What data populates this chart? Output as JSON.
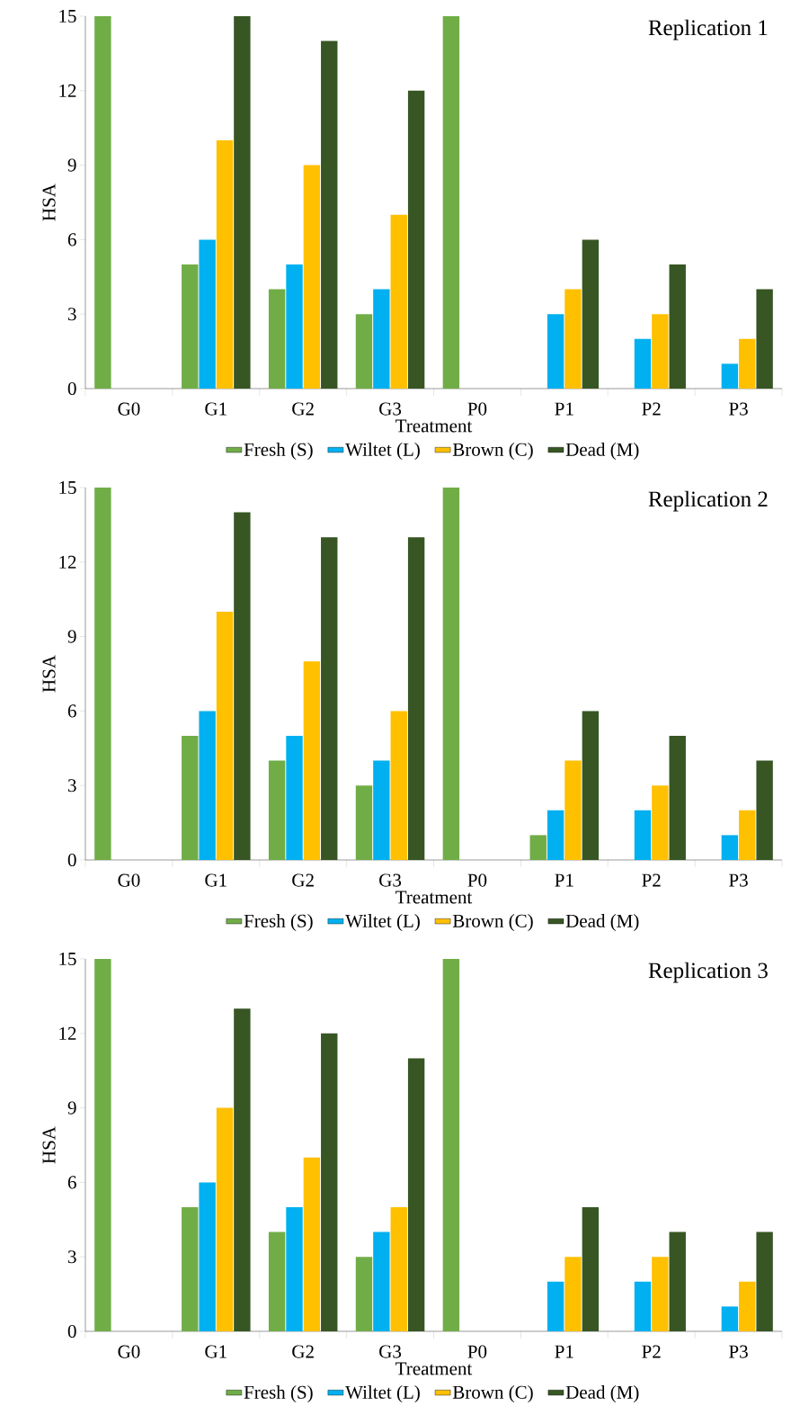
{
  "chart_data": [
    {
      "type": "bar",
      "title": "Replication 1",
      "xlabel": "Treatment",
      "ylabel": "HSA",
      "categories": [
        "G0",
        "G1",
        "G2",
        "G3",
        "P0",
        "P1",
        "P2",
        "P3"
      ],
      "ylim": [
        0,
        15
      ],
      "yticks": [
        0,
        3,
        6,
        9,
        12,
        15
      ],
      "grid": false,
      "legend": "bottom",
      "series": [
        {
          "name": "Fresh (S)",
          "color": "#70ad47",
          "values": [
            15,
            5,
            4,
            3,
            15,
            0,
            0,
            0
          ]
        },
        {
          "name": "Wiltet (L)",
          "color": "#00b0f0",
          "values": [
            0,
            6,
            5,
            4,
            0,
            3,
            2,
            1
          ]
        },
        {
          "name": "Brown (C)",
          "color": "#ffc000",
          "values": [
            0,
            10,
            9,
            7,
            0,
            4,
            3,
            2
          ]
        },
        {
          "name": "Dead (M)",
          "color": "#375623",
          "values": [
            0,
            15,
            14,
            12,
            0,
            6,
            5,
            4
          ]
        }
      ]
    },
    {
      "type": "bar",
      "title": "Replication 2",
      "xlabel": "Treatment",
      "ylabel": "HSA",
      "categories": [
        "G0",
        "G1",
        "G2",
        "G3",
        "P0",
        "P1",
        "P2",
        "P3"
      ],
      "ylim": [
        0,
        15
      ],
      "yticks": [
        0,
        3,
        6,
        9,
        12,
        15
      ],
      "grid": false,
      "legend": "bottom",
      "series": [
        {
          "name": "Fresh (S)",
          "color": "#70ad47",
          "values": [
            15,
            5,
            4,
            3,
            15,
            1,
            0,
            0
          ]
        },
        {
          "name": "Wiltet (L)",
          "color": "#00b0f0",
          "values": [
            0,
            6,
            5,
            4,
            0,
            2,
            2,
            1
          ]
        },
        {
          "name": "Brown (C)",
          "color": "#ffc000",
          "values": [
            0,
            10,
            8,
            6,
            0,
            4,
            3,
            2
          ]
        },
        {
          "name": "Dead (M)",
          "color": "#375623",
          "values": [
            0,
            14,
            13,
            13,
            0,
            6,
            5,
            4
          ]
        }
      ]
    },
    {
      "type": "bar",
      "title": "Replication 3",
      "xlabel": "Treatment",
      "ylabel": "HSA",
      "categories": [
        "G0",
        "G1",
        "G2",
        "G3",
        "P0",
        "P1",
        "P2",
        "P3"
      ],
      "ylim": [
        0,
        15
      ],
      "yticks": [
        0,
        3,
        6,
        9,
        12,
        15
      ],
      "grid": false,
      "legend": "bottom",
      "series": [
        {
          "name": "Fresh (S)",
          "color": "#70ad47",
          "values": [
            15,
            5,
            4,
            3,
            15,
            0,
            0,
            0
          ]
        },
        {
          "name": "Wiltet (L)",
          "color": "#00b0f0",
          "values": [
            0,
            6,
            5,
            4,
            0,
            2,
            2,
            1
          ]
        },
        {
          "name": "Brown (C)",
          "color": "#ffc000",
          "values": [
            0,
            9,
            7,
            5,
            0,
            3,
            3,
            2
          ]
        },
        {
          "name": "Dead (M)",
          "color": "#375623",
          "values": [
            0,
            13,
            12,
            11,
            0,
            5,
            4,
            4
          ]
        }
      ]
    }
  ]
}
